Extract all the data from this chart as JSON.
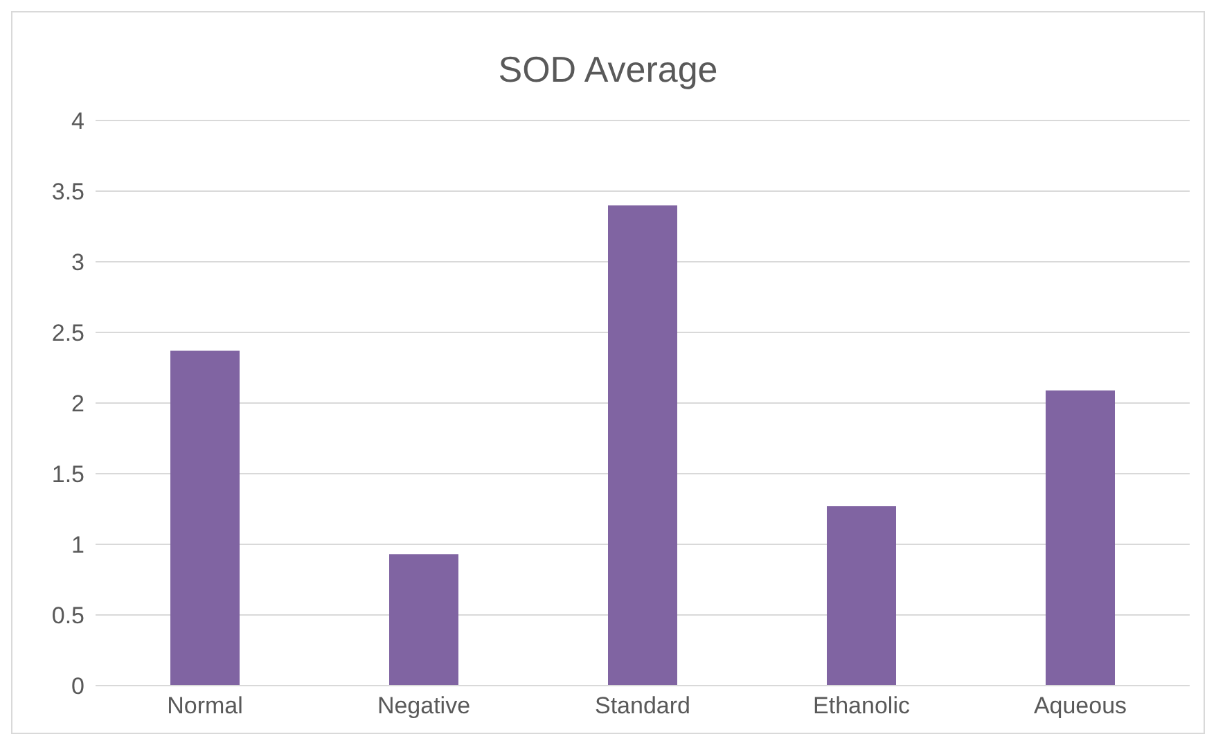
{
  "chart_data": {
    "type": "bar",
    "title": "SOD Average",
    "categories": [
      "Normal",
      "Negative",
      "Standard",
      "Ethanolic",
      "Aqueous"
    ],
    "values": [
      2.37,
      0.93,
      3.4,
      1.27,
      2.09
    ],
    "color": "#8064a2",
    "ylim": [
      0,
      4
    ],
    "yticks": [
      0,
      0.5,
      1,
      1.5,
      2,
      2.5,
      3,
      3.5,
      4
    ],
    "grid": "y"
  }
}
